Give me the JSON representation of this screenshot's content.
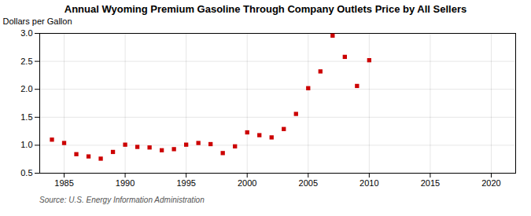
{
  "chart_data": {
    "type": "scatter",
    "title": "Annual Wyoming Premium Gasoline Through Company Outlets Price by All Sellers",
    "ylabel": "Dollars per Gallon",
    "source": "Source: U.S. Energy Information Administration",
    "x": [
      1984,
      1985,
      1986,
      1987,
      1988,
      1989,
      1990,
      1991,
      1992,
      1993,
      1994,
      1995,
      1996,
      1997,
      1998,
      1999,
      2000,
      2001,
      2002,
      2003,
      2004,
      2005,
      2006,
      2007,
      2008,
      2009,
      2010
    ],
    "values": [
      1.1,
      1.04,
      0.84,
      0.8,
      0.76,
      0.88,
      1.01,
      0.97,
      0.96,
      0.91,
      0.93,
      1.01,
      1.04,
      1.02,
      0.86,
      0.98,
      1.23,
      1.18,
      1.14,
      1.29,
      1.56,
      2.02,
      2.32,
      2.96,
      2.58,
      2.06,
      2.52
    ],
    "xlim": [
      1983,
      2022
    ],
    "xticks": [
      1985,
      1990,
      1995,
      2000,
      2005,
      2010,
      2015,
      2020
    ],
    "ylim": [
      0.5,
      3.0
    ],
    "yticks": [
      0.5,
      {
        "value": 1,
        "label": "1.0"
      },
      1.5,
      {
        "value": 2,
        "label": "2.0"
      },
      2.5,
      {
        "value": 3,
        "label": "3.0"
      }
    ],
    "color": "#cc0000",
    "marker": "square",
    "grid": true
  }
}
